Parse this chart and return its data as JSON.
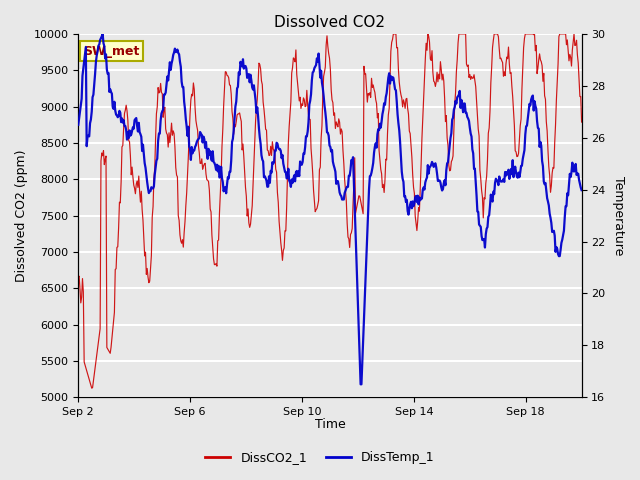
{
  "title": "Dissolved CO2",
  "xlabel": "Time",
  "ylabel_left": "Dissolved CO2 (ppm)",
  "ylabel_right": "Temperature",
  "annotation": "SW_met",
  "ylim_left": [
    5000,
    10000
  ],
  "ylim_right": [
    16,
    30
  ],
  "yticks_left": [
    5000,
    5500,
    6000,
    6500,
    7000,
    7500,
    8000,
    8500,
    9000,
    9500,
    10000
  ],
  "yticks_right": [
    16,
    18,
    20,
    22,
    24,
    26,
    28,
    30
  ],
  "color_red": "#cc0000",
  "color_blue": "#0000cc",
  "bg_outer": "#e8e8e8",
  "bg_plot": "#e8e8e8",
  "grid_color": "#ffffff",
  "legend_entries": [
    "DissCO2_1",
    "DissTemp_1"
  ],
  "x_tick_labels": [
    "Sep 2",
    "Sep 6",
    "Sep 10",
    "Sep 14",
    "Sep 18"
  ],
  "x_tick_positions": [
    2,
    6,
    10,
    14,
    18
  ],
  "x_lim": [
    2,
    20
  ],
  "title_fontsize": 11,
  "label_fontsize": 9,
  "tick_fontsize": 8
}
